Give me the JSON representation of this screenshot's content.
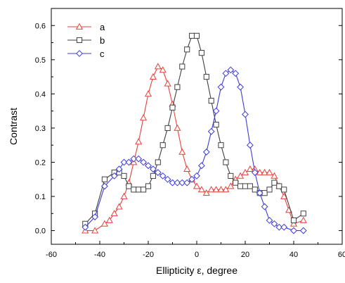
{
  "chart_data": {
    "type": "line",
    "xlabel": "Ellipticity ε, degree",
    "ylabel": "Contrast",
    "xlim": [
      -60,
      60
    ],
    "ylim": [
      -0.04,
      0.65
    ],
    "xticks": [
      -60,
      -40,
      -20,
      0,
      20,
      40,
      60
    ],
    "yticks": [
      0.0,
      0.1,
      0.2,
      0.3,
      0.4,
      0.5,
      0.6
    ],
    "xtick_labels": [
      "-60",
      "-40",
      "-20",
      "0",
      "20",
      "40",
      "60"
    ],
    "ytick_labels": [
      "0.0",
      "0.1",
      "0.2",
      "0.3",
      "0.4",
      "0.5",
      "0.6"
    ],
    "legend_position": "top-left",
    "series": [
      {
        "name": "a",
        "color": "#e8413c",
        "marker": "triangle",
        "x": [
          -46,
          -42,
          -38,
          -36,
          -34,
          -32,
          -30,
          -28,
          -26,
          -24,
          -22,
          -20,
          -18,
          -16,
          -14,
          -12,
          -10,
          -8,
          -6,
          -4,
          -2,
          0,
          2,
          4,
          6,
          8,
          10,
          12,
          14,
          16,
          18,
          20,
          22,
          24,
          26,
          28,
          30,
          32,
          34,
          36,
          38,
          40,
          44
        ],
        "y": [
          0.0,
          0.0,
          0.02,
          0.03,
          0.05,
          0.07,
          0.1,
          0.14,
          0.2,
          0.26,
          0.33,
          0.4,
          0.45,
          0.48,
          0.47,
          0.43,
          0.37,
          0.3,
          0.23,
          0.18,
          0.15,
          0.13,
          0.12,
          0.11,
          0.12,
          0.12,
          0.12,
          0.12,
          0.13,
          0.15,
          0.16,
          0.17,
          0.18,
          0.18,
          0.17,
          0.17,
          0.17,
          0.16,
          0.13,
          0.1,
          0.06,
          0.02,
          0.03
        ]
      },
      {
        "name": "b",
        "color": "#404040",
        "marker": "square",
        "x": [
          -46,
          -42,
          -38,
          -34,
          -32,
          -30,
          -28,
          -26,
          -24,
          -22,
          -20,
          -18,
          -16,
          -14,
          -12,
          -10,
          -8,
          -6,
          -4,
          -2,
          0,
          2,
          4,
          6,
          8,
          10,
          12,
          14,
          16,
          18,
          20,
          22,
          24,
          26,
          28,
          30,
          32,
          34,
          36,
          40,
          44
        ],
        "y": [
          0.02,
          0.05,
          0.15,
          0.17,
          0.17,
          0.16,
          0.13,
          0.12,
          0.12,
          0.12,
          0.13,
          0.16,
          0.2,
          0.25,
          0.3,
          0.36,
          0.42,
          0.48,
          0.53,
          0.57,
          0.57,
          0.52,
          0.45,
          0.38,
          0.31,
          0.25,
          0.2,
          0.16,
          0.14,
          0.13,
          0.13,
          0.13,
          0.12,
          0.11,
          0.11,
          0.12,
          0.14,
          0.13,
          0.12,
          0.03,
          0.05
        ]
      },
      {
        "name": "c",
        "color": "#3d3dd6",
        "marker": "diamond",
        "x": [
          -46,
          -42,
          -38,
          -34,
          -32,
          -30,
          -28,
          -26,
          -24,
          -22,
          -20,
          -18,
          -16,
          -14,
          -12,
          -10,
          -8,
          -6,
          -4,
          -2,
          0,
          2,
          4,
          6,
          8,
          10,
          12,
          14,
          16,
          18,
          20,
          22,
          24,
          26,
          28,
          30,
          32,
          34,
          36,
          40,
          44
        ],
        "y": [
          0.01,
          0.04,
          0.13,
          0.16,
          0.18,
          0.2,
          0.2,
          0.21,
          0.21,
          0.2,
          0.19,
          0.18,
          0.17,
          0.16,
          0.15,
          0.14,
          0.14,
          0.14,
          0.14,
          0.15,
          0.16,
          0.19,
          0.23,
          0.29,
          0.35,
          0.42,
          0.46,
          0.47,
          0.46,
          0.42,
          0.34,
          0.25,
          0.17,
          0.11,
          0.07,
          0.03,
          0.02,
          0.01,
          0.01,
          0.0,
          0.0
        ]
      }
    ]
  }
}
